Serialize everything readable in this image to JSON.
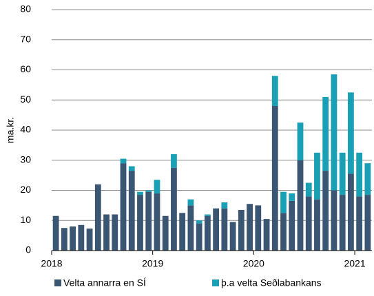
{
  "chart_data": {
    "type": "stacked_bar",
    "y_label": "ma.kr.",
    "categories": [
      null,
      null,
      null,
      null,
      null,
      null,
      null,
      null,
      null,
      null,
      null,
      null,
      null,
      null,
      null,
      null,
      null,
      null,
      null,
      null,
      null,
      null,
      null,
      null,
      null,
      null,
      null,
      null,
      null,
      null,
      null,
      null,
      null,
      null,
      null,
      null,
      null,
      null
    ],
    "series": [
      {
        "name": "Velta annarra en SÍ",
        "color": "#3b5673",
        "values": [
          11.5,
          7.5,
          8,
          8.5,
          7.3,
          22,
          12,
          12,
          29,
          26.5,
          18.5,
          19.5,
          19,
          11.5,
          27.5,
          12.5,
          15,
          9,
          11.5,
          14,
          14,
          9.5,
          13.5,
          15.5,
          15,
          10.5,
          48,
          12.5,
          16.5,
          30,
          18,
          17,
          26.5,
          20,
          18.5,
          25.5,
          18,
          18.5
        ]
      },
      {
        "name": "þ.a velta Seðlabankans",
        "color": "#1aa0b4",
        "values": [
          0,
          0,
          0,
          0,
          0,
          0,
          0,
          0,
          1.5,
          1.5,
          1,
          0.5,
          4.5,
          0,
          4.5,
          0,
          2,
          1,
          0.5,
          0,
          2,
          0,
          0,
          0,
          0,
          0,
          10,
          7,
          2.5,
          12.5,
          4.5,
          15.5,
          24.5,
          38.5,
          14,
          27,
          14.5,
          10.5
        ]
      }
    ],
    "xlim": [
      2018,
      2021.17
    ],
    "xticks": [
      2018,
      2019,
      2020,
      2021
    ],
    "ylim": [
      0,
      80
    ],
    "yticks": [
      0,
      10,
      20,
      30,
      40,
      50,
      60,
      70,
      80
    ],
    "grid": true,
    "legend": "bottom"
  }
}
